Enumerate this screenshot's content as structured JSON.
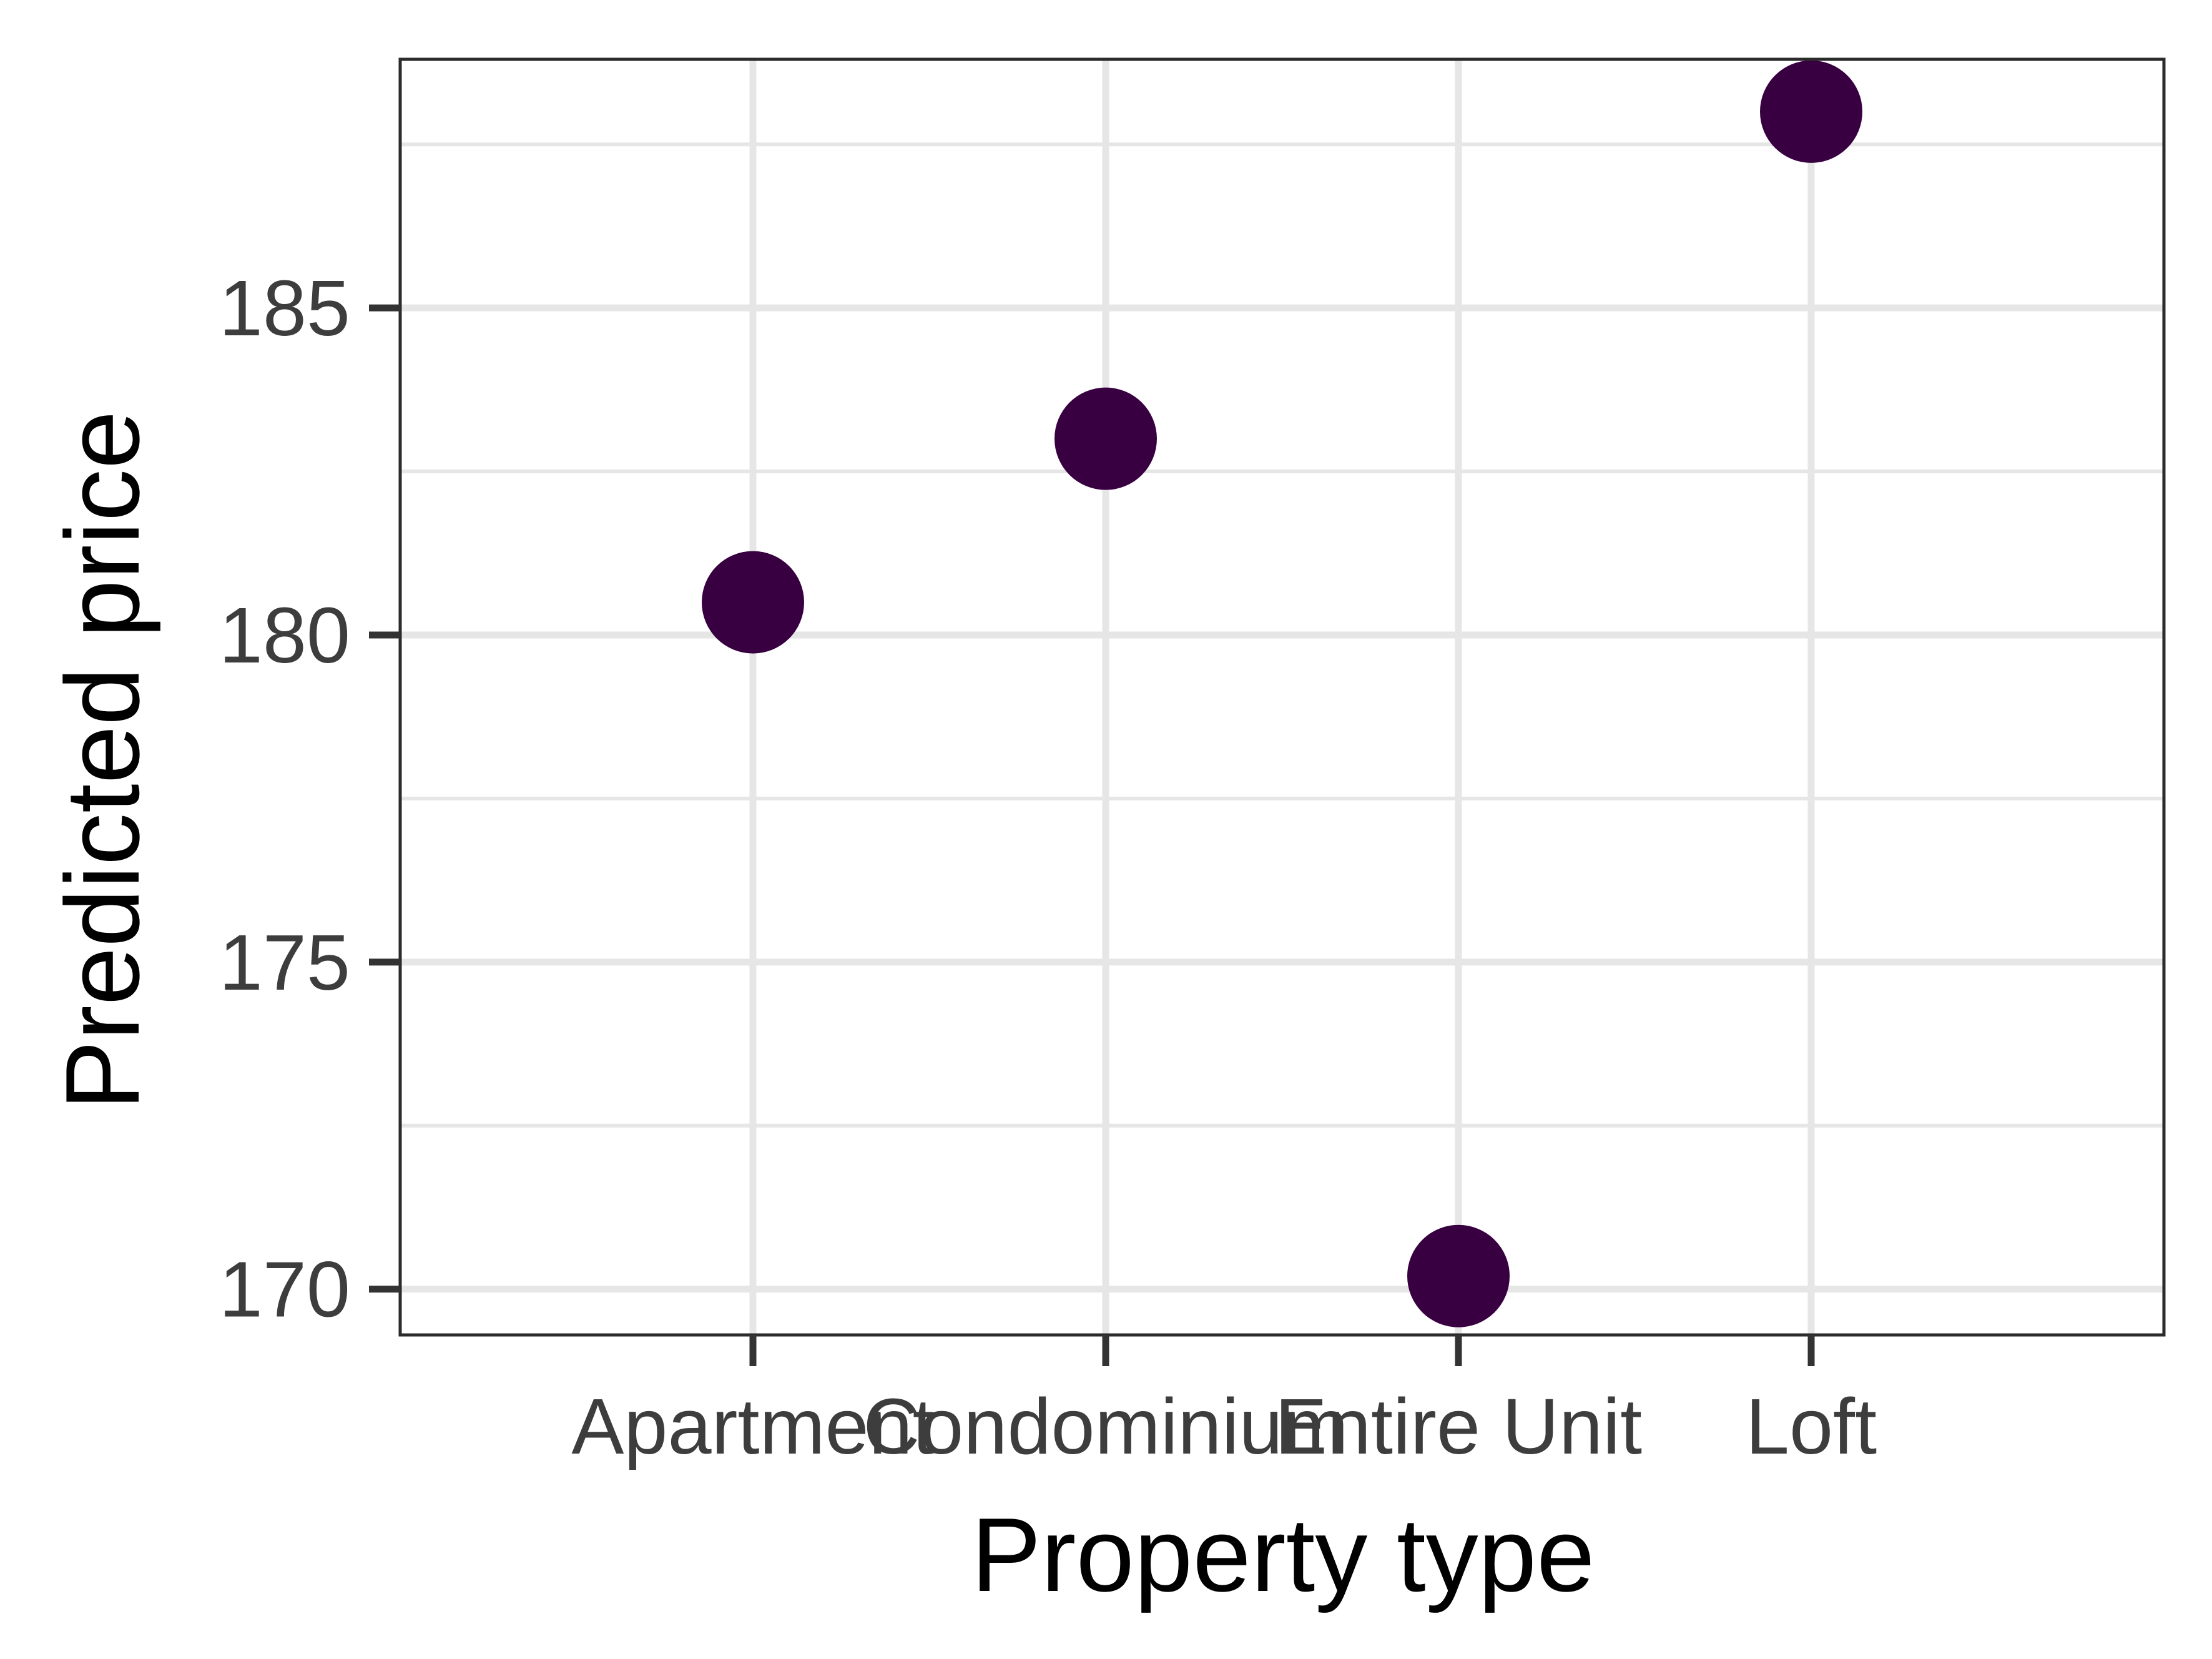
{
  "chart_data": {
    "type": "scatter",
    "xlabel": "Property type",
    "ylabel": "Predicted price",
    "categories": [
      "Apartment",
      "Condominium",
      "Entire Unit",
      "Loft"
    ],
    "values": [
      180.5,
      183.0,
      170.2,
      188.0
    ],
    "ylim": [
      169.3,
      188.8
    ],
    "y_ticks": [
      170,
      175,
      180,
      185
    ],
    "y_minor_ticks": [
      172.5,
      177.5,
      182.5,
      187.5
    ],
    "grid": true,
    "point_color": "#380041",
    "grid_color": "#e6e6e6",
    "panel_border_color": "#2b2b2b"
  }
}
